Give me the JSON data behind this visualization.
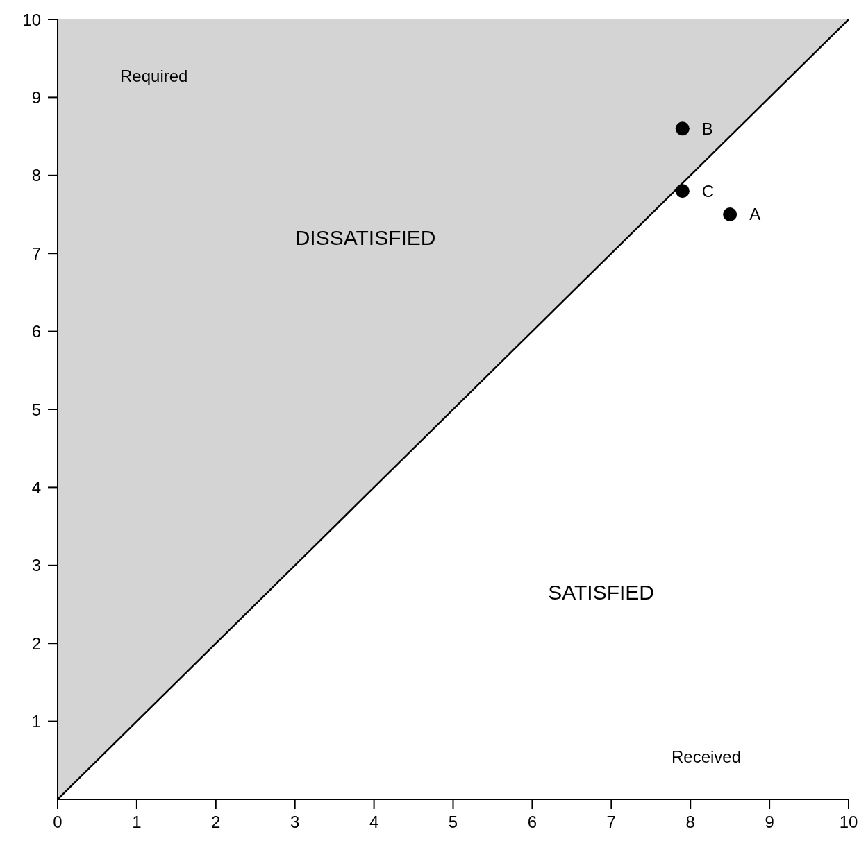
{
  "chart_data": {
    "type": "scatter",
    "xlabel": "Received",
    "ylabel": "Required",
    "xlim": [
      0,
      10
    ],
    "ylim": [
      0,
      10
    ],
    "xticks": [
      0,
      1,
      2,
      3,
      4,
      5,
      6,
      7,
      8,
      9,
      10
    ],
    "yticks": [
      1,
      2,
      3,
      4,
      5,
      6,
      7,
      8,
      9,
      10
    ],
    "grid": false,
    "legend": false,
    "series": [
      {
        "type": "line",
        "color": "#000000",
        "x": [
          0,
          10
        ],
        "values": [
          0,
          10
        ],
        "lower": [
          0,
          10
        ],
        "upper": [
          10,
          10
        ]
      },
      {
        "color": "#000000",
        "marker": "circle",
        "x": [
          8.5,
          7.9,
          7.9
        ],
        "values": [
          7.5,
          8.6,
          7.8
        ],
        "value_labels": [
          "A",
          "B",
          "C"
        ]
      }
    ],
    "annotations": [
      "DISSATISFIED",
      "SATISFIED"
    ]
  }
}
